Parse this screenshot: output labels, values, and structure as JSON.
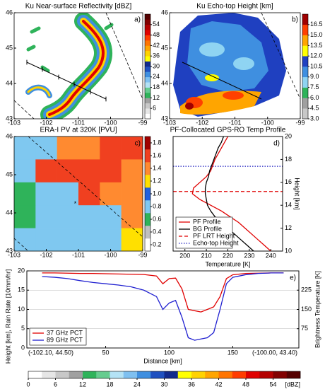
{
  "chart_data": [
    {
      "type": "map",
      "title": "Ku Near-surface Reflectivity [dBZ]",
      "label": "a)",
      "xlim": [
        -103,
        -99
      ],
      "ylim": [
        43,
        46
      ],
      "xticks": [
        -103,
        -102,
        -101,
        -100,
        -99
      ],
      "yticks": [
        43,
        44,
        45,
        46
      ],
      "colorbar": {
        "clim": [
          0,
          60
        ],
        "ticks": [
          6,
          12,
          18,
          24,
          30,
          36,
          42,
          48,
          54
        ],
        "colors": [
          "#ffffff",
          "#e6e6e6",
          "#c8c8c8",
          "#a0a0a0",
          "#2fb35a",
          "#66cc8f",
          "#b4e2f5",
          "#7fc0f0",
          "#3f8fe0",
          "#1f50c0",
          "#122a8c",
          "#ffff00",
          "#ffd200",
          "#ffa500",
          "#ff7400",
          "#ff3c00",
          "#e00000",
          "#b40000",
          "#820000",
          "#550000"
        ]
      }
    },
    {
      "type": "map",
      "title": "Ku Echo-top Height [km]",
      "label": "b)",
      "xlim": [
        -103,
        -99
      ],
      "ylim": [
        43,
        46
      ],
      "xticks": [
        -103,
        -102,
        -101,
        -100,
        -99
      ],
      "yticks": [
        43,
        44,
        45,
        46
      ],
      "colorbar": {
        "clim": [
          3,
          18
        ],
        "ticks": [
          {
            "value": 3,
            "label": "3.0"
          },
          4.5,
          {
            "value": 6,
            "label": "6.0"
          },
          7.5,
          {
            "value": 9,
            "label": "9.0"
          },
          10.5,
          {
            "value": 12,
            "label": "12.0"
          },
          13.5,
          {
            "value": 15,
            "label": "15.0"
          },
          16.5
        ],
        "colors": [
          "#c8c8c8",
          "#a0a0a0",
          "#2fb35a",
          "#8fd4f2",
          "#3f8fe0",
          "#1f40c0",
          "#ffff00",
          "#ffa500",
          "#ff4000",
          "#a00000"
        ]
      }
    },
    {
      "type": "heatmap",
      "title": "ERA-I PV at 320K [PVU]",
      "label": "c)",
      "xlim": [
        -103,
        -99
      ],
      "ylim": [
        43,
        46
      ],
      "xticks": [
        -103,
        -102,
        -101,
        -100,
        -99
      ],
      "yticks": [
        43,
        44,
        45,
        46
      ],
      "values": [
        [
          0.8,
          0.8,
          1.4,
          1.4,
          1.6,
          1.6
        ],
        [
          0.8,
          1.6,
          1.6,
          1.6,
          1.6,
          1.4
        ],
        [
          0.6,
          0.8,
          0.8,
          1.6,
          1.4,
          1.4
        ],
        [
          0.6,
          0.8,
          0.8,
          0.8,
          0.8,
          1.4
        ],
        [
          0.8,
          0.8,
          0.8,
          0.8,
          0.8,
          1.2
        ]
      ],
      "annotations": [
        {
          "text": "*",
          "x": -101.1,
          "y": 44.3
        }
      ],
      "colorbar": {
        "clim": [
          0.1,
          1.9
        ],
        "ticks": [
          0.2,
          0.4,
          0.6,
          0.8,
          {
            "value": 1,
            "label": "1.0"
          },
          1.2,
          1.4,
          1.6,
          1.8
        ],
        "colors": [
          "#ffffff",
          "#c0c0c0",
          "#2fb35a",
          "#7fc8f0",
          "#2060e0",
          "#ffe000",
          "#ff8a30",
          "#f04020",
          "#a00000"
        ]
      }
    },
    {
      "type": "line",
      "title": "PF-Collocated GPS-RO Temp Profile",
      "label": "d)",
      "xlabel": "Temperature [K]",
      "ylabel": "Height [km]",
      "xlim": [
        194.5,
        245.5
      ],
      "ylim": [
        10,
        20
      ],
      "xticks": [
        200,
        210,
        220,
        230,
        240
      ],
      "yticks": [
        10,
        12,
        14,
        16,
        18,
        20
      ],
      "y": [
        10,
        10.5,
        11,
        11.5,
        12,
        12.5,
        13,
        13.5,
        14,
        14.5,
        15,
        15.5,
        16,
        16.5,
        17,
        17.5,
        18,
        18.5,
        19,
        19.5,
        20
      ],
      "series": [
        {
          "name": "PF Profile",
          "color": "#e00000",
          "values": [
            240,
            237,
            234,
            231,
            228,
            225,
            221,
            217,
            212,
            207,
            203.5,
            204,
            207,
            210,
            212,
            213,
            214,
            215.5,
            217,
            218.5,
            220
          ]
        },
        {
          "name": "BG Profile",
          "color": "#000000",
          "values": [
            232,
            229,
            226,
            223,
            220,
            217,
            214,
            212,
            210.5,
            210,
            209.5,
            209.5,
            210,
            211,
            211.5,
            212.5,
            213.5,
            214.5,
            215.5,
            217,
            218
          ]
        }
      ],
      "hlines": [
        {
          "name": "PF LRT Height",
          "value": 15.2,
          "color": "#e00000",
          "dash": "dashed"
        },
        {
          "name": "Echo-top Height",
          "value": 17.4,
          "color": "#2020c0",
          "dash": "dotted"
        }
      ],
      "legend": "lower left"
    },
    {
      "type": "line",
      "label": "e)",
      "xlabel": "Distance [km]",
      "ylabel": "Height [km], Rain Rate [10mm/hr]",
      "y2label": "Brightness Temperature [K]",
      "xlim": [
        -12,
        202
      ],
      "xticks": [
        50,
        100,
        150
      ],
      "ylim": [
        0,
        20
      ],
      "yticks": [
        0,
        5,
        10,
        15,
        20
      ],
      "y2lim": [
        0,
        300
      ],
      "y2ticks": [
        75,
        150,
        225
      ],
      "grid": true,
      "x": [
        0,
        10,
        20,
        30,
        40,
        50,
        60,
        70,
        80,
        90,
        95,
        100,
        105,
        110,
        115,
        120,
        125,
        130,
        135,
        140,
        145,
        150,
        160,
        170,
        180,
        190
      ],
      "series": [
        {
          "name": "37 GHz PCT",
          "color": "#e00000",
          "axis": "y2",
          "values": [
            292,
            292,
            291,
            290,
            290,
            289,
            288,
            287,
            286,
            280,
            250,
            270,
            272,
            230,
            150,
            145,
            140,
            150,
            160,
            200,
            270,
            285,
            290,
            291,
            292,
            292
          ]
        },
        {
          "name": "89 GHz PCT",
          "color": "#2020d0",
          "axis": "y2",
          "values": [
            278,
            275,
            270,
            262,
            255,
            250,
            245,
            238,
            225,
            200,
            150,
            175,
            185,
            120,
            40,
            30,
            35,
            40,
            60,
            150,
            250,
            275,
            285,
            290,
            292,
            292
          ]
        }
      ],
      "annotations": [
        {
          "text": "(-102.10, 44.50)",
          "position": "left"
        },
        {
          "text": "(-100.00, 43.40)",
          "position": "right"
        }
      ],
      "legend": "lower left",
      "colorbar": {
        "clim": [
          0,
          60
        ],
        "ticks": [
          0,
          6,
          12,
          18,
          24,
          30,
          36,
          42,
          48,
          54
        ],
        "unit": "[dBZ]",
        "colors": [
          "#ffffff",
          "#e6e6e6",
          "#c8c8c8",
          "#a0a0a0",
          "#2fb35a",
          "#66cc8f",
          "#b4e2f5",
          "#7fc0f0",
          "#3f8fe0",
          "#1f50c0",
          "#122a8c",
          "#ffff00",
          "#ffd200",
          "#ffa500",
          "#ff7400",
          "#ff3c00",
          "#e00000",
          "#b40000",
          "#820000",
          "#550000"
        ]
      }
    }
  ]
}
